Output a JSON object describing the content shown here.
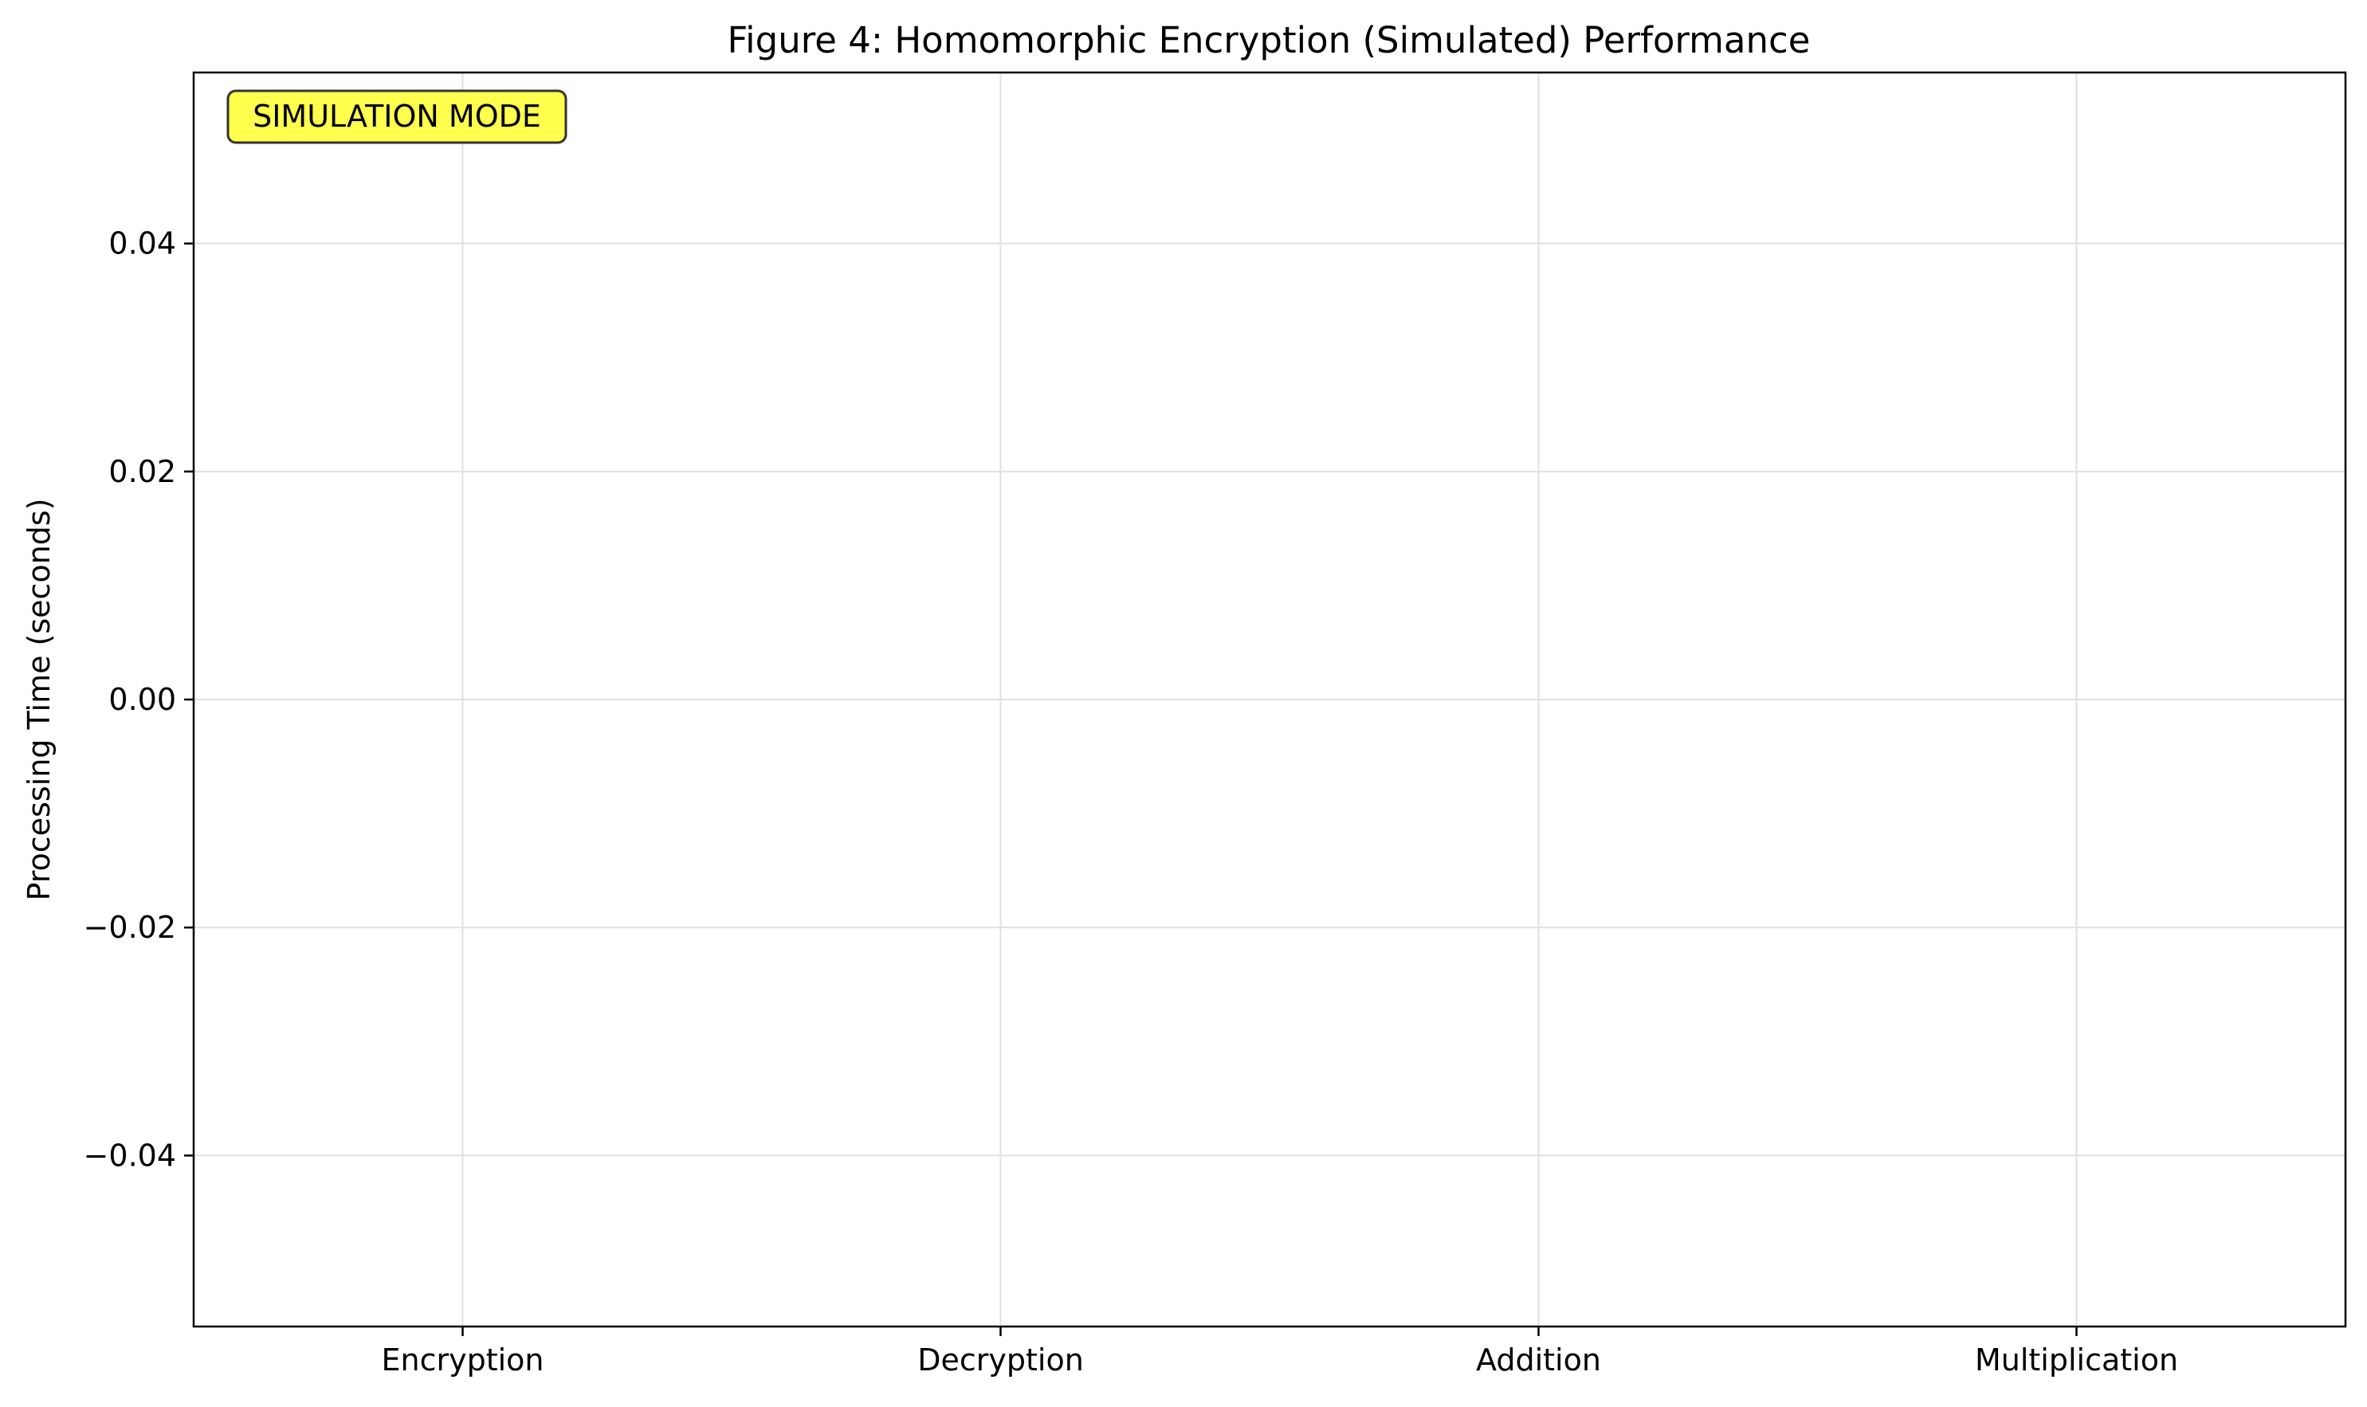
{
  "chart_data": {
    "type": "bar",
    "title": "Figure 4: Homomorphic Encryption (Simulated) Performance",
    "xlabel": "",
    "ylabel": "Processing Time (seconds)",
    "categories": [
      "Encryption",
      "Decryption",
      "Addition",
      "Multiplication"
    ],
    "values": [
      null,
      null,
      null,
      null
    ],
    "ylim": [
      -0.055,
      0.055
    ],
    "yticks": [
      -0.04,
      -0.02,
      0.0,
      0.02,
      0.04
    ],
    "ytick_labels": [
      "−0.04",
      "−0.02",
      "0.00",
      "0.02",
      "0.04"
    ],
    "grid": true,
    "annotation": "SIMULATION MODE",
    "colors": {
      "annotation_bg": "#ffff44",
      "annotation_border": "#333333",
      "grid": "#e0e0e0",
      "axes": "#000000"
    }
  }
}
